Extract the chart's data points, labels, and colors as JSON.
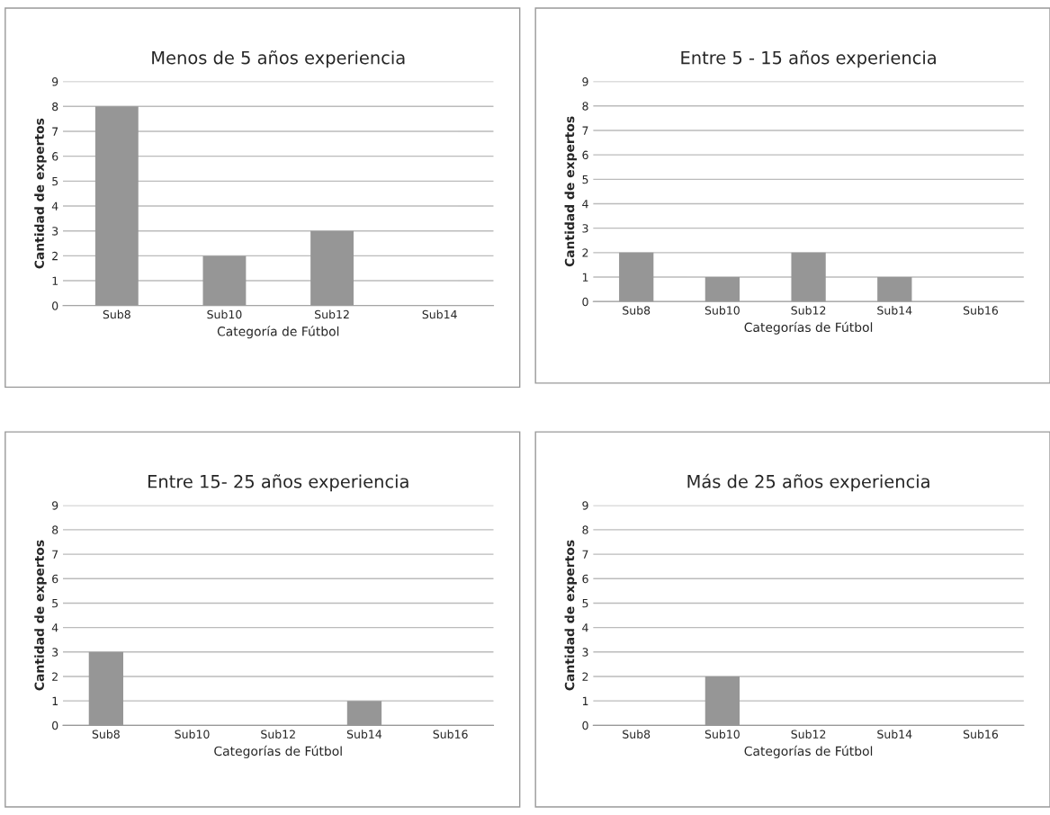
{
  "chart_data": [
    {
      "type": "bar",
      "title": "Menos de 5 años experiencia",
      "xlabel": "Categoría de Fútbol",
      "ylabel": "Cantidad de expertos",
      "categories": [
        "Sub8",
        "Sub10",
        "Sub12",
        "Sub14"
      ],
      "values": [
        8,
        2,
        3,
        0
      ],
      "color": "#969696",
      "ylim": [
        0,
        9
      ],
      "yticks": [
        0,
        1,
        2,
        3,
        4,
        5,
        6,
        7,
        8,
        9
      ],
      "grid": "y",
      "legend": false
    },
    {
      "type": "bar",
      "title": "Entre 5 - 15 años experiencia",
      "xlabel": "Categorías de Fútbol",
      "ylabel": "Cantidad de expertos",
      "categories": [
        "Sub8",
        "Sub10",
        "Sub12",
        "Sub14",
        "Sub16"
      ],
      "values": [
        2,
        1,
        2,
        1,
        0
      ],
      "color": "#969696",
      "ylim": [
        0,
        9
      ],
      "yticks": [
        0,
        1,
        2,
        3,
        4,
        5,
        6,
        7,
        8,
        9
      ],
      "grid": "y",
      "legend": false
    },
    {
      "type": "bar",
      "title": "Entre 15- 25 años experiencia",
      "xlabel": "Categorías de Fútbol",
      "ylabel": "Cantidad de expertos",
      "categories": [
        "Sub8",
        "Sub10",
        "Sub12",
        "Sub14",
        "Sub16"
      ],
      "values": [
        3,
        0,
        0,
        1,
        0
      ],
      "color": "#969696",
      "ylim": [
        0,
        9
      ],
      "yticks": [
        0,
        1,
        2,
        3,
        4,
        5,
        6,
        7,
        8,
        9
      ],
      "grid": "y",
      "legend": false
    },
    {
      "type": "bar",
      "title": "Más de 25 años experiencia",
      "xlabel": "Categorías de Fútbol",
      "ylabel": "Cantidad de expertos",
      "categories": [
        "Sub8",
        "Sub10",
        "Sub12",
        "Sub14",
        "Sub16"
      ],
      "values": [
        0,
        2,
        0,
        0,
        0
      ],
      "color": "#969696",
      "ylim": [
        0,
        9
      ],
      "yticks": [
        0,
        1,
        2,
        3,
        4,
        5,
        6,
        7,
        8,
        9
      ],
      "grid": "y",
      "legend": false
    }
  ]
}
